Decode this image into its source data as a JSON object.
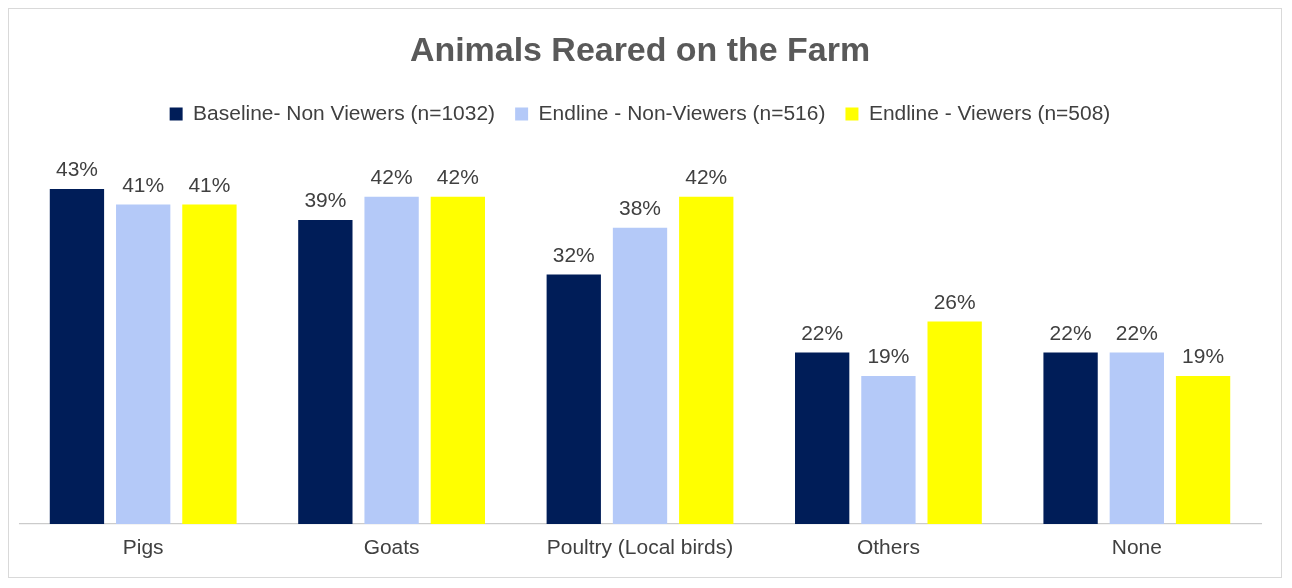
{
  "chart_data": {
    "type": "bar",
    "title": "Animals Reared on the Farm",
    "categories": [
      "Pigs",
      "Goats",
      "Poultry (Local birds)",
      "Others",
      "None"
    ],
    "series": [
      {
        "name": "Baseline- Non Viewers (n=1032)",
        "color": "#001d58",
        "values": [
          43,
          39,
          32,
          22,
          22
        ],
        "value_labels": [
          "43%",
          "39%",
          "32%",
          "22%",
          "22%"
        ]
      },
      {
        "name": "Endline - Non-Viewers (n=516)",
        "color": "#b4c9f8",
        "values": [
          41,
          42,
          38,
          19,
          22
        ],
        "value_labels": [
          "41%",
          "42%",
          "38%",
          "19%",
          "22%"
        ]
      },
      {
        "name": "Endline - Viewers (n=508)",
        "color": "#ffff00",
        "values": [
          41,
          42,
          42,
          26,
          19
        ],
        "value_labels": [
          "41%",
          "42%",
          "42%",
          "26%",
          "19%"
        ]
      }
    ],
    "legend": "top",
    "grid": false
  }
}
